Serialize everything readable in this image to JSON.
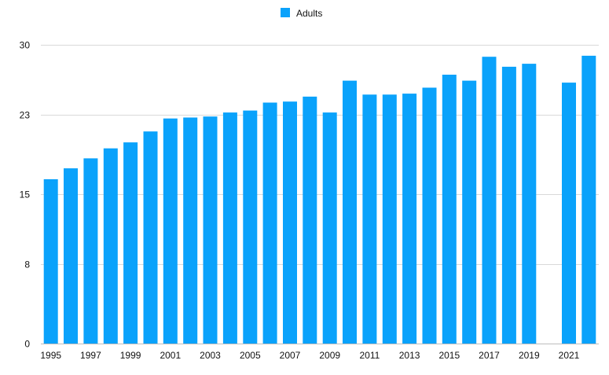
{
  "chart_data": {
    "type": "bar",
    "categories": [
      "1995",
      "1996",
      "1997",
      "1998",
      "1999",
      "2000",
      "2001",
      "2002",
      "2003",
      "2004",
      "2005",
      "2006",
      "2007",
      "2008",
      "2009",
      "2010",
      "2011",
      "2012",
      "2013",
      "2014",
      "2015",
      "2016",
      "2017",
      "2018",
      "2019",
      "2020",
      "2021",
      "2022"
    ],
    "x_tick_labels": [
      "1995",
      "1997",
      "1999",
      "2001",
      "2003",
      "2005",
      "2007",
      "2009",
      "2011",
      "2013",
      "2015",
      "2017",
      "2019",
      "2021"
    ],
    "series": [
      {
        "name": "Adults",
        "color": "#0aa2fb",
        "values": [
          16.5,
          17.6,
          18.6,
          19.6,
          20.2,
          21.3,
          22.6,
          22.7,
          22.8,
          23.2,
          23.4,
          24.2,
          24.3,
          24.8,
          23.2,
          26.4,
          25.0,
          25.0,
          25.1,
          25.7,
          27.0,
          26.4,
          28.8,
          27.8,
          28.1,
          null,
          26.2,
          28.9
        ]
      }
    ],
    "y_ticks": [
      0,
      8,
      15,
      23,
      30
    ],
    "ylim": [
      0,
      30
    ],
    "grid": true,
    "legend": "top-center",
    "title": "",
    "xlabel": "",
    "ylabel": ""
  }
}
